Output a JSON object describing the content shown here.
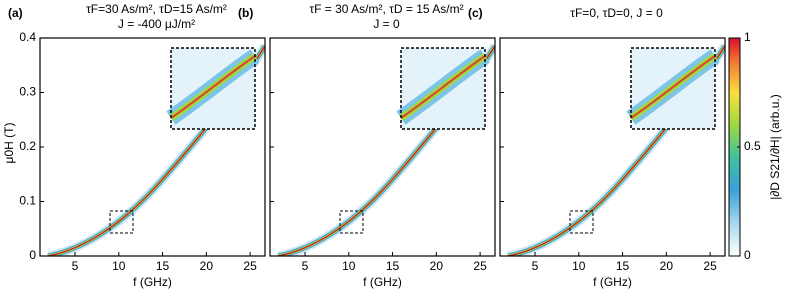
{
  "chart_data": [
    {
      "type": "heatmap",
      "panel_label": "(a)",
      "title": [
        "τF=30 As/m², τD=15 As/m²",
        "J = -400 μJ/m²"
      ],
      "xlabel": "f (GHz)",
      "ylabel": "μ0H (T)",
      "xlim": [
        1,
        26.7
      ],
      "ylim": [
        0,
        0.4
      ],
      "xticks": [
        5,
        10,
        15,
        20,
        25
      ],
      "yticks": [
        0,
        0.1,
        0.2,
        0.3,
        0.4
      ]
    },
    {
      "type": "heatmap",
      "panel_label": "(b)",
      "title": [
        "τF = 30 As/m², τD = 15 As/m²",
        "J = 0"
      ],
      "xlabel": "f (GHz)",
      "xlim": [
        1,
        26.7
      ],
      "ylim": [
        0,
        0.4
      ],
      "xticks": [
        5,
        10,
        15,
        20,
        25
      ],
      "yticks": [
        0,
        0.1,
        0.2,
        0.3,
        0.4
      ]
    },
    {
      "type": "heatmap",
      "panel_label": "(c)",
      "title": [
        "τF=0, τD=0, J = 0"
      ],
      "xlabel": "f (GHz)",
      "xlim": [
        1,
        26.7
      ],
      "ylim": [
        0,
        0.4
      ],
      "xticks": [
        5,
        10,
        15,
        20,
        25
      ],
      "yticks": [
        0,
        0.1,
        0.2,
        0.3,
        0.4
      ]
    }
  ],
  "colorbar": {
    "label": "|∂D S21/∂H| (arb.u.)",
    "lim": [
      0,
      1
    ],
    "ticks": [
      0,
      0.5,
      1
    ]
  }
}
